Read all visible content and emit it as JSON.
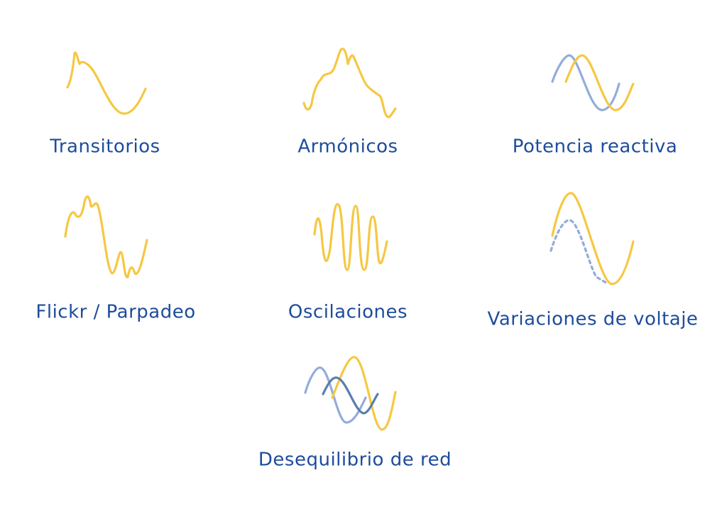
{
  "items": [
    {
      "label": "Transitorios"
    },
    {
      "label": "Armónicos"
    },
    {
      "label": "Potencia reactiva"
    },
    {
      "label": "Flickr / Parpadeo"
    },
    {
      "label": "Oscilaciones"
    },
    {
      "label": "Variaciones de voltaje"
    },
    {
      "label": "Desequilibrio de red"
    }
  ]
}
